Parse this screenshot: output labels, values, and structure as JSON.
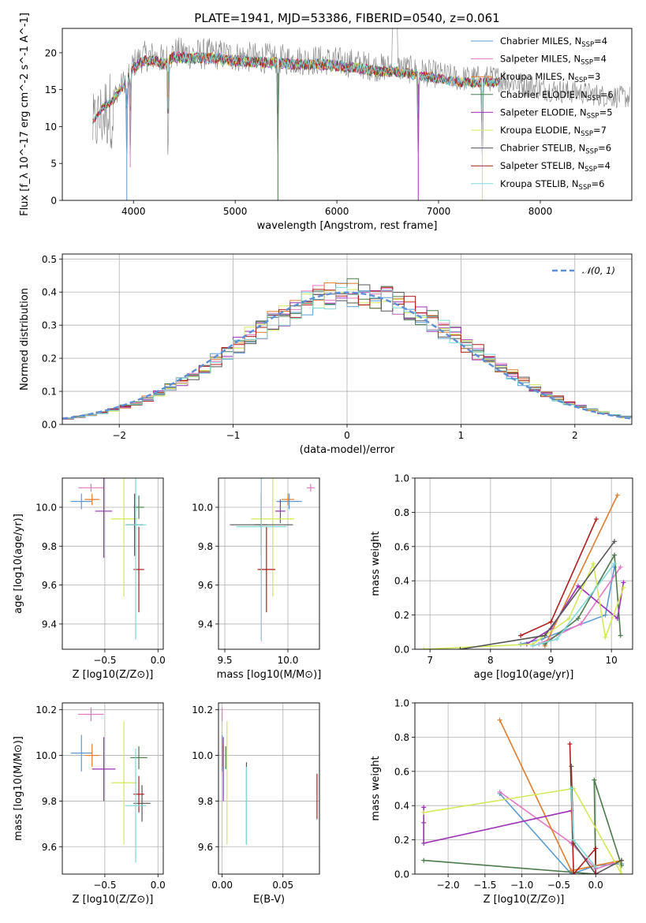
{
  "figure": {
    "title": "PLATE=1941, MJD=53386, FIBERID=0540, z=0.061"
  },
  "series_styles": [
    {
      "name": "Chabrier MILES",
      "color": "#5b9bd5"
    },
    {
      "name": "Salpeter MILES",
      "color": "#e377c2"
    },
    {
      "name": "Kroupa MILES",
      "color": "#e07b2c"
    },
    {
      "name": "Chabrier ELODIE",
      "color": "#4c7a4c"
    },
    {
      "name": "Salpeter ELODIE",
      "color": "#9b30b5"
    },
    {
      "name": "Kroupa ELODIE",
      "color": "#d4e85a"
    },
    {
      "name": "Chabrier STELIB",
      "color": "#555555"
    },
    {
      "name": "Salpeter STELIB",
      "color": "#b01c1c"
    },
    {
      "name": "Kroupa STELIB",
      "color": "#7fd8d8"
    }
  ],
  "chart_data": [
    {
      "id": "spectrum",
      "type": "line",
      "title": "PLATE=1941, MJD=53386, FIBERID=0540, z=0.061",
      "xlabel": "wavelength [Angstrom, rest frame]",
      "ylabel": "Flux [f_λ 10^-17 erg cm^-2 s^-1 A^-1]",
      "xlim": [
        3300,
        8900
      ],
      "ylim": [
        0,
        23.3
      ],
      "xticks": [
        4000,
        5000,
        6000,
        7000,
        8000
      ],
      "yticks": [
        0,
        5,
        10,
        15,
        20
      ],
      "grid": false,
      "legend_position": "top-right",
      "legend": [
        {
          "label": "Chabrier MILES, N",
          "sub": "SSP",
          "suffix": "=4"
        },
        {
          "label": "Salpeter MILES, N",
          "sub": "SSP",
          "suffix": "=4"
        },
        {
          "label": "Kroupa MILES, N",
          "sub": "SSP",
          "suffix": "=3"
        },
        {
          "label": "Chabrier ELODIE, N",
          "sub": "SSP",
          "suffix": "=6"
        },
        {
          "label": "Salpeter ELODIE, N",
          "sub": "SSP",
          "suffix": "=5"
        },
        {
          "label": "Kroupa ELODIE, N",
          "sub": "SSP",
          "suffix": "=7"
        },
        {
          "label": "Chabrier STELIB, N",
          "sub": "SSP",
          "suffix": "=6"
        },
        {
          "label": "Salpeter STELIB, N",
          "sub": "SSP",
          "suffix": "=4"
        },
        {
          "label": "Kroupa STELIB, N",
          "sub": "SSP",
          "suffix": "=6"
        }
      ],
      "data_envelope": {
        "x": [
          3600,
          3700,
          3800,
          3900,
          4000,
          4100,
          4200,
          4300,
          4400,
          4600,
          4800,
          5000,
          5200,
          5400,
          5600,
          5800,
          6000,
          6200,
          6400,
          6600,
          6800,
          7000,
          7200,
          7400,
          7600,
          7800,
          8000,
          8200,
          8400,
          8600,
          8800
        ],
        "y": [
          11,
          13,
          14,
          16,
          18.5,
          19.5,
          19.5,
          19,
          20,
          19.8,
          19.8,
          19.5,
          19.3,
          19.2,
          19,
          19,
          18.8,
          18.5,
          18,
          18,
          17.5,
          17,
          16.5,
          16.5,
          16.5,
          15.8,
          15.2,
          14.8,
          14.6,
          14.2,
          14
        ]
      },
      "absorption_dips": [
        {
          "x": 3934,
          "y": 0
        },
        {
          "x": 3968,
          "y": 4.5
        },
        {
          "x": 4340,
          "y": 14
        },
        {
          "x": 5420,
          "y": 0
        },
        {
          "x": 6800,
          "y": 0
        },
        {
          "x": 7430,
          "y": 0
        }
      ]
    },
    {
      "id": "residuals",
      "type": "line",
      "xlabel": "(data-model)/error",
      "ylabel": "Normed distribution",
      "xlim": [
        -2.5,
        2.5
      ],
      "ylim": [
        0,
        0.515
      ],
      "xticks": [
        -2,
        -1,
        0,
        1,
        2
      ],
      "yticks": [
        0.0,
        0.1,
        0.2,
        0.3,
        0.4,
        0.5
      ],
      "grid": true,
      "legend_position": "top-right",
      "legend": [
        {
          "label": "𝒩(0, 1)"
        }
      ],
      "normal_curve": {
        "mean": 0,
        "sigma": 1
      },
      "histogram": {
        "bin_width": 0.1,
        "range": [
          -2.5,
          2.5
        ],
        "form": "step",
        "shape": "approximately N(0,1) per series"
      }
    },
    {
      "id": "age_vs_Z",
      "type": "scatter",
      "xlabel": "Z [log10(Z/Z⊙)]",
      "ylabel": "age [log10(age/yr)]",
      "xlim": [
        -0.9,
        0.05
      ],
      "ylim": [
        9.27,
        10.15
      ],
      "xticks": [
        -0.5,
        0.0
      ],
      "yticks": [
        9.4,
        9.6,
        9.8,
        10.0
      ],
      "grid": true,
      "points": [
        {
          "series": 0,
          "x": -0.72,
          "y": 10.03,
          "xerr": 0.1,
          "yerr": 0.04
        },
        {
          "series": 1,
          "x": -0.63,
          "y": 10.1,
          "xerr": 0.12,
          "yerr": 0.02
        },
        {
          "series": 2,
          "x": -0.62,
          "y": 10.04,
          "xerr": 0.07,
          "yerr": 0.03
        },
        {
          "series": 3,
          "x": -0.18,
          "y": 10.0,
          "xerr": 0.05,
          "yerr": 0.06
        },
        {
          "series": 4,
          "x": -0.51,
          "y": 9.98,
          "xerr": 0.08,
          "yerr": 0.24
        },
        {
          "series": 5,
          "x": -0.32,
          "y": 9.94,
          "xerr": 0.12,
          "yerr": 0.4
        },
        {
          "series": 6,
          "x": -0.22,
          "y": 9.91,
          "xerr": 0.08,
          "yerr": 0.16
        },
        {
          "series": 7,
          "x": -0.18,
          "y": 9.68,
          "xerr": 0.05,
          "yerr": 0.22
        },
        {
          "series": 8,
          "x": -0.21,
          "y": 9.91,
          "xerr": 0.1,
          "yerr": 0.59
        }
      ]
    },
    {
      "id": "age_vs_mass",
      "type": "scatter",
      "xlabel": "mass [log10(M/M⊙)]",
      "ylabel": "",
      "xlim": [
        9.45,
        10.25
      ],
      "ylim": [
        9.27,
        10.15
      ],
      "xticks": [
        9.5,
        10.0
      ],
      "yticks": [
        9.4,
        9.6,
        9.8,
        10.0
      ],
      "grid": true,
      "points": [
        {
          "series": 0,
          "x": 10.01,
          "y": 10.03,
          "xerr": 0.1,
          "yerr": 0.04
        },
        {
          "series": 1,
          "x": 10.18,
          "y": 10.1,
          "xerr": 0.03,
          "yerr": 0.02
        },
        {
          "series": 2,
          "x": 10.0,
          "y": 10.04,
          "xerr": 0.05,
          "yerr": 0.03
        },
        {
          "series": 3,
          "x": 9.79,
          "y": 9.91,
          "xerr": 0.05,
          "yerr": 0.59
        },
        {
          "series": 4,
          "x": 9.94,
          "y": 9.98,
          "xerr": 0.04,
          "yerr": 0.06
        },
        {
          "series": 5,
          "x": 9.88,
          "y": 9.94,
          "xerr": 0.17,
          "yerr": 0.4
        },
        {
          "series": 6,
          "x": 9.79,
          "y": 9.91,
          "xerr": 0.25,
          "yerr": 0.16
        },
        {
          "series": 7,
          "x": 9.83,
          "y": 9.68,
          "xerr": 0.07,
          "yerr": 0.22
        },
        {
          "series": 8,
          "x": 9.79,
          "y": 9.9,
          "xerr": 0.2,
          "yerr": 0.59
        }
      ]
    },
    {
      "id": "weight_vs_age",
      "type": "line",
      "xlabel": "age [log10(age/yr)]",
      "ylabel": "mass weight",
      "xlim": [
        6.75,
        10.35
      ],
      "ylim": [
        0,
        1.0
      ],
      "xticks": [
        7,
        8,
        9,
        10
      ],
      "yticks": [
        0.0,
        0.2,
        0.4,
        0.6,
        0.8,
        1.0
      ],
      "grid": true,
      "series": [
        {
          "series": 0,
          "x": [
            8.5,
            8.85,
            9.9,
            10.05
          ],
          "y": [
            0.03,
            0.06,
            0.2,
            0.48
          ]
        },
        {
          "series": 1,
          "x": [
            8.8,
            9.5,
            10.15
          ],
          "y": [
            0.03,
            0.15,
            0.48
          ]
        },
        {
          "series": 2,
          "x": [
            8.9,
            10.1
          ],
          "y": [
            0.02,
            0.9
          ]
        },
        {
          "series": 3,
          "x": [
            8.9,
            9.45,
            10.05,
            10.15
          ],
          "y": [
            0.03,
            0.18,
            0.55,
            0.08
          ]
        },
        {
          "series": 4,
          "x": [
            8.6,
            9.0,
            9.45,
            10.1,
            10.2
          ],
          "y": [
            0.03,
            0.12,
            0.37,
            0.18,
            0.39
          ]
        },
        {
          "series": 5,
          "x": [
            6.9,
            8.7,
            9.3,
            9.7,
            9.9,
            10.2
          ],
          "y": [
            0.0,
            0.03,
            0.18,
            0.5,
            0.07,
            0.36
          ]
        },
        {
          "series": 6,
          "x": [
            7.5,
            8.9,
            10.05
          ],
          "y": [
            0.0,
            0.08,
            0.63
          ]
        },
        {
          "series": 7,
          "x": [
            8.5,
            9.0,
            9.75
          ],
          "y": [
            0.08,
            0.16,
            0.76
          ]
        },
        {
          "series": 8,
          "x": [
            8.7,
            9.1,
            10.05
          ],
          "y": [
            0.02,
            0.06,
            0.5
          ]
        }
      ]
    },
    {
      "id": "mass_vs_Z",
      "type": "scatter",
      "xlabel": "Z [log10(Z/Z⊙)]",
      "ylabel": "mass [log10(M/M⊙)]",
      "xlim": [
        -0.9,
        0.05
      ],
      "ylim": [
        9.48,
        10.23
      ],
      "xticks": [
        -0.5,
        0.0
      ],
      "yticks": [
        9.6,
        9.8,
        10.0,
        10.2
      ],
      "grid": true,
      "points": [
        {
          "series": 0,
          "x": -0.72,
          "y": 10.01,
          "xerr": 0.1,
          "yerr": 0.08
        },
        {
          "series": 1,
          "x": -0.63,
          "y": 10.18,
          "xerr": 0.12,
          "yerr": 0.03
        },
        {
          "series": 2,
          "x": -0.62,
          "y": 10.0,
          "xerr": 0.07,
          "yerr": 0.05
        },
        {
          "series": 3,
          "x": -0.18,
          "y": 9.99,
          "xerr": 0.08,
          "yerr": 0.05
        },
        {
          "series": 4,
          "x": -0.51,
          "y": 9.94,
          "xerr": 0.11,
          "yerr": 0.14
        },
        {
          "series": 5,
          "x": -0.32,
          "y": 9.88,
          "xerr": 0.12,
          "yerr": 0.27
        },
        {
          "series": 6,
          "x": -0.15,
          "y": 9.79,
          "xerr": 0.08,
          "yerr": 0.08
        },
        {
          "series": 7,
          "x": -0.18,
          "y": 9.83,
          "xerr": 0.05,
          "yerr": 0.08
        },
        {
          "series": 8,
          "x": -0.21,
          "y": 9.78,
          "xerr": 0.1,
          "yerr": 0.25
        }
      ]
    },
    {
      "id": "mass_vs_ebv",
      "type": "scatter",
      "xlabel": "E(B-V)",
      "ylabel": "",
      "xlim": [
        -0.003,
        0.08
      ],
      "ylim": [
        9.48,
        10.23
      ],
      "xticks": [
        0.0,
        0.05
      ],
      "yticks": [
        9.6,
        9.8,
        10.0,
        10.2
      ],
      "grid": true,
      "points": [
        {
          "series": 0,
          "x": 0.0,
          "y": 10.01,
          "xerr": 0,
          "yerr": 0.08
        },
        {
          "series": 1,
          "x": 0.0,
          "y": 10.18,
          "xerr": 0,
          "yerr": 0.03
        },
        {
          "series": 2,
          "x": 0.0,
          "y": 10.0,
          "xerr": 0,
          "yerr": 0.05
        },
        {
          "series": 3,
          "x": 0.003,
          "y": 9.99,
          "xerr": 0,
          "yerr": 0.05
        },
        {
          "series": 4,
          "x": 0.001,
          "y": 9.94,
          "xerr": 0,
          "yerr": 0.14
        },
        {
          "series": 5,
          "x": 0.004,
          "y": 9.88,
          "xerr": 0,
          "yerr": 0.27
        },
        {
          "series": 6,
          "x": 0.02,
          "y": 9.79,
          "xerr": 0,
          "yerr": 0.18
        },
        {
          "series": 7,
          "x": 0.078,
          "y": 9.82,
          "xerr": 0,
          "yerr": 0.1
        },
        {
          "series": 8,
          "x": 0.02,
          "y": 9.78,
          "xerr": 0,
          "yerr": 0.17
        }
      ]
    },
    {
      "id": "weight_vs_Z",
      "type": "line",
      "xlabel": "Z [log10(Z/Z⊙)]",
      "ylabel": "mass weight",
      "xlim": [
        -2.45,
        0.5
      ],
      "ylim": [
        0,
        1.0
      ],
      "xticks": [
        -2.0,
        -1.5,
        -1.0,
        -0.5,
        0.0
      ],
      "yticks": [
        0.0,
        0.2,
        0.4,
        0.6,
        0.8,
        1.0
      ],
      "grid": true,
      "series": [
        {
          "series": 0,
          "x": [
            -1.3,
            -0.33,
            0.0,
            0.35
          ],
          "y": [
            0.47,
            0.0,
            0.05,
            0.06
          ]
        },
        {
          "series": 1,
          "x": [
            -1.3,
            -0.33,
            0.0,
            0.35
          ],
          "y": [
            0.48,
            0.18,
            0.03,
            0.08
          ]
        },
        {
          "series": 2,
          "x": [
            -1.3,
            -0.33,
            0.35
          ],
          "y": [
            0.9,
            0.02,
            0.08
          ]
        },
        {
          "series": 3,
          "x": [
            -2.33,
            0.0,
            -0.02,
            0.35
          ],
          "y": [
            0.08,
            0.0,
            0.55,
            0.05
          ]
        },
        {
          "series": 4,
          "x": [
            -2.33,
            -2.33,
            -2.33,
            -0.33
          ],
          "y": [
            0.39,
            0.3,
            0.18,
            0.37
          ]
        },
        {
          "series": 5,
          "x": [
            -2.33,
            -0.3,
            0.35,
            0.32
          ],
          "y": [
            0.36,
            0.5,
            0.0,
            0.07
          ]
        },
        {
          "series": 6,
          "x": [
            -0.33,
            -0.3,
            0.0,
            0.35
          ],
          "y": [
            0.63,
            0.18,
            0.0,
            0.08
          ]
        },
        {
          "series": 7,
          "x": [
            -0.35,
            -0.3,
            0.0,
            0.0
          ],
          "y": [
            0.76,
            0.0,
            0.15,
            0.0
          ]
        },
        {
          "series": 8,
          "x": [
            -0.33,
            -0.3,
            0.0
          ],
          "y": [
            0.5,
            0.2,
            0.04
          ]
        }
      ]
    }
  ]
}
